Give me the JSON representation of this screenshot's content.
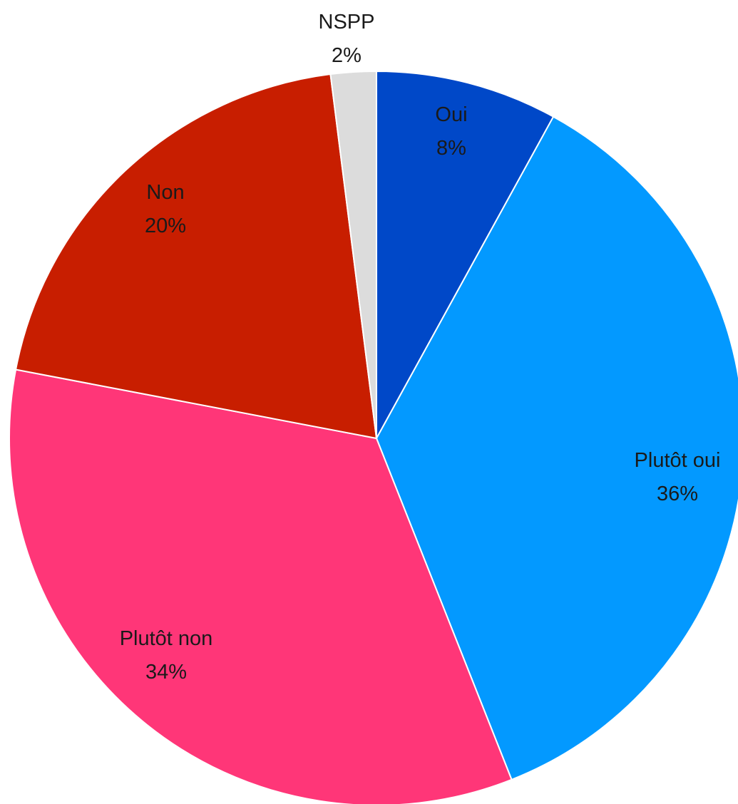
{
  "chart_data": {
    "type": "pie",
    "title": "",
    "start_angle_deg": 0,
    "direction": "clockwise",
    "grid": false,
    "legend": "none",
    "slices": [
      {
        "label": "Oui",
        "pct_label": "8%",
        "value": 8,
        "color": "#0048c8"
      },
      {
        "label": "Plutôt oui",
        "pct_label": "36%",
        "value": 36,
        "color": "#0399ff"
      },
      {
        "label": "Plutôt non",
        "pct_label": "34%",
        "value": 34,
        "color": "#ff3678"
      },
      {
        "label": "Non",
        "pct_label": "20%",
        "value": 20,
        "color": "#c81e00"
      },
      {
        "label": "NSPP",
        "pct_label": "2%",
        "value": 2,
        "color": "#dcdcdc"
      }
    ]
  }
}
